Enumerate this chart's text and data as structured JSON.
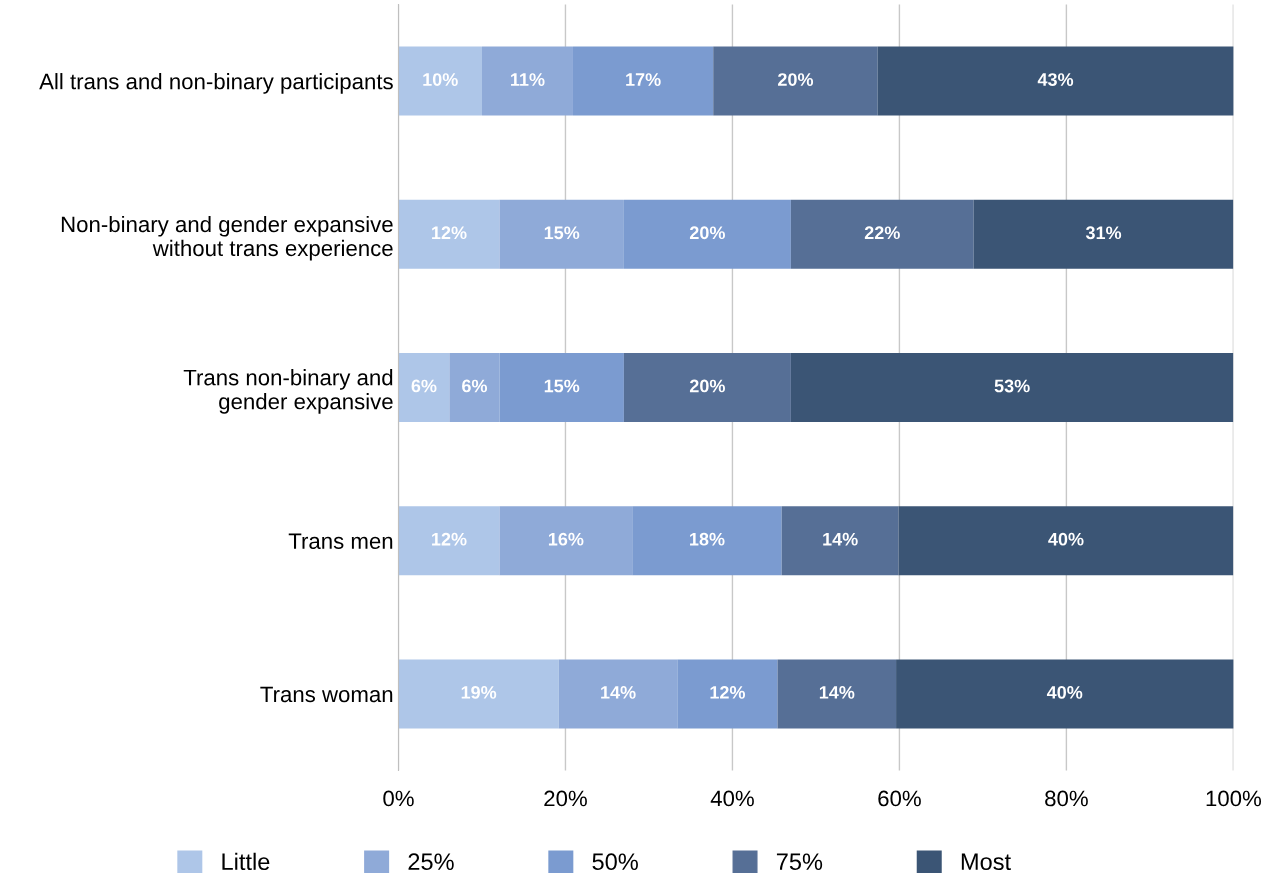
{
  "chart_data": {
    "type": "bar",
    "orientation": "horizontal",
    "stacked": true,
    "categories": [
      "All trans and non-binary participants",
      "Non-binary and gender expansive\nwithout trans experience",
      "Trans non-binary and\ngender expansive",
      "Trans men",
      "Trans woman"
    ],
    "series": [
      {
        "name": "Little",
        "color": "#aec6e8",
        "values": [
          10.0,
          12.1,
          6.1,
          12.1,
          19.2
        ],
        "value_labels": [
          "10%",
          "12%",
          "6%",
          "12%",
          "19%"
        ]
      },
      {
        "name": "25%",
        "color": "#8faad8",
        "values": [
          10.9,
          14.9,
          6.0,
          15.9,
          14.2
        ],
        "value_labels": [
          "11%",
          "15%",
          "6%",
          "16%",
          "14%"
        ]
      },
      {
        "name": "50%",
        "color": "#7b9bd0",
        "values": [
          16.8,
          20.0,
          14.9,
          17.9,
          12.0
        ],
        "value_labels": [
          "17%",
          "20%",
          "15%",
          "18%",
          "12%"
        ]
      },
      {
        "name": "75%",
        "color": "#566f96",
        "values": [
          19.7,
          21.9,
          20.0,
          14.0,
          14.2
        ],
        "value_labels": [
          "20%",
          "22%",
          "20%",
          "14%",
          "14%"
        ]
      },
      {
        "name": "Most",
        "color": "#3b5575",
        "values": [
          42.7,
          31.1,
          53.0,
          40.1,
          40.5
        ],
        "value_labels": [
          "43%",
          "31%",
          "53%",
          "40%",
          "40%"
        ]
      }
    ],
    "xlim": [
      0,
      100
    ],
    "xticks": [
      {
        "value": 0,
        "label": "0%"
      },
      {
        "value": 20,
        "label": "20%"
      },
      {
        "value": 40,
        "label": "40%"
      },
      {
        "value": 60,
        "label": "60%"
      },
      {
        "value": 80,
        "label": "80%"
      },
      {
        "value": 100,
        "label": "100%"
      }
    ],
    "grid": "x",
    "legend": "bottom"
  }
}
